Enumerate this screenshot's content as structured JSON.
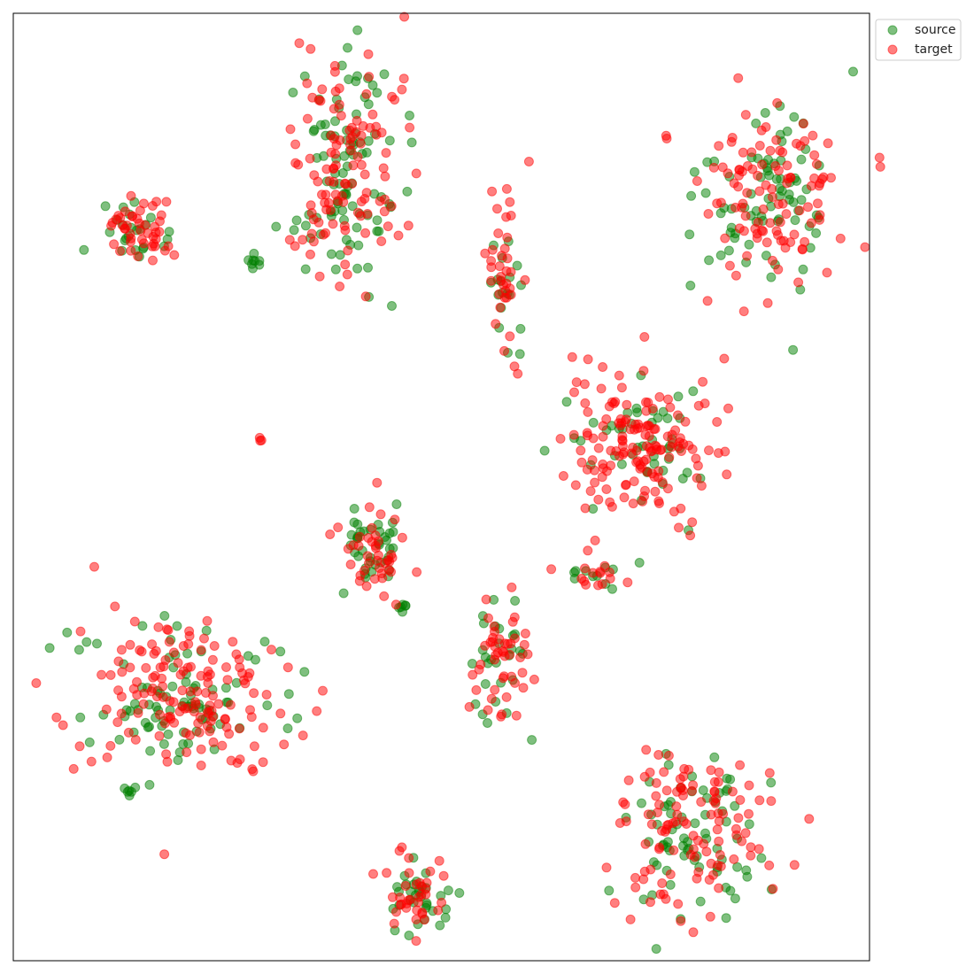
{
  "chart_data": {
    "type": "scatter",
    "title": "",
    "xlabel": "",
    "ylabel": "",
    "xlim": [
      0,
      100
    ],
    "ylim": [
      0,
      100
    ],
    "grid": false,
    "ticks_visible": false,
    "legend": {
      "placement": "outside-top-right",
      "entries": [
        "source",
        "target"
      ]
    },
    "marker": {
      "opacity": 0.5
    },
    "colors": {
      "source": "#008000",
      "target": "#ff0000"
    },
    "clusters": [
      {
        "cx": 38.6,
        "cy": 84.1,
        "rx": 6.5,
        "ry": 13.0,
        "n": 210,
        "mix": 0.62
      },
      {
        "cx": 14.5,
        "cy": 76.9,
        "rx": 3.5,
        "ry": 3.5,
        "n": 70,
        "mix": 0.6
      },
      {
        "cx": 28.2,
        "cy": 73.8,
        "rx": 1.0,
        "ry": 1.0,
        "n": 8,
        "mix": 0.0
      },
      {
        "cx": 57.5,
        "cy": 72.5,
        "rx": 2.2,
        "ry": 8.5,
        "n": 55,
        "mix": 0.65
      },
      {
        "cx": 88.6,
        "cy": 80.4,
        "rx": 8.0,
        "ry": 9.5,
        "n": 190,
        "mix": 0.65
      },
      {
        "cx": 73.1,
        "cy": 54.2,
        "rx": 9.0,
        "ry": 7.5,
        "n": 200,
        "mix": 0.7
      },
      {
        "cx": 28.8,
        "cy": 55.0,
        "rx": 0.5,
        "ry": 0.5,
        "n": 3,
        "mix": 0.5
      },
      {
        "cx": 42.0,
        "cy": 43.4,
        "rx": 3.5,
        "ry": 5.0,
        "n": 80,
        "mix": 0.55
      },
      {
        "cx": 45.3,
        "cy": 37.3,
        "rx": 0.7,
        "ry": 0.7,
        "n": 6,
        "mix": 0.0
      },
      {
        "cx": 56.8,
        "cy": 31.6,
        "rx": 3.5,
        "ry": 6.5,
        "n": 75,
        "mix": 0.6
      },
      {
        "cx": 68.0,
        "cy": 40.4,
        "rx": 3.5,
        "ry": 2.0,
        "n": 25,
        "mix": 0.7
      },
      {
        "cx": 19.1,
        "cy": 28.2,
        "rx": 12.0,
        "ry": 8.5,
        "n": 240,
        "mix": 0.62
      },
      {
        "cx": 13.5,
        "cy": 17.9,
        "rx": 0.8,
        "ry": 0.8,
        "n": 6,
        "mix": 0.0
      },
      {
        "cx": 79.6,
        "cy": 13.2,
        "rx": 9.0,
        "ry": 9.0,
        "n": 190,
        "mix": 0.62
      },
      {
        "cx": 47.0,
        "cy": 7.5,
        "rx": 3.5,
        "ry": 4.0,
        "n": 70,
        "mix": 0.55
      }
    ]
  }
}
